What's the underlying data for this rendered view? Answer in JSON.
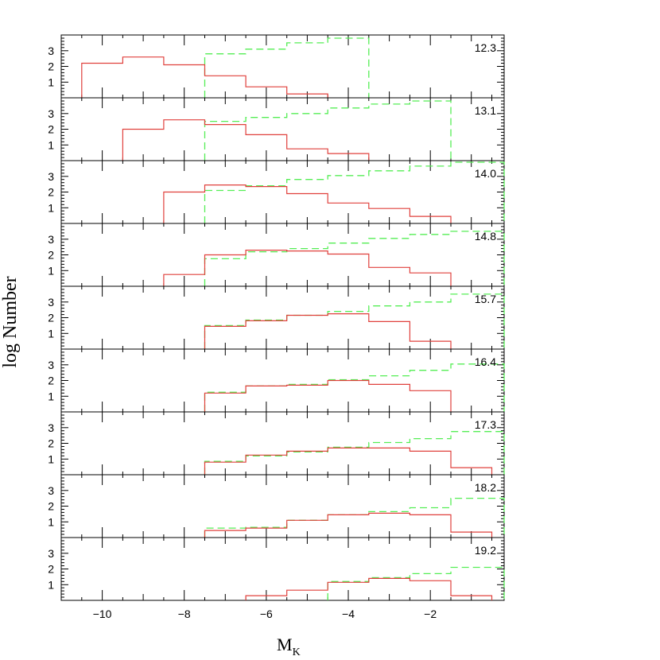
{
  "chart_data": {
    "type": "step",
    "xlabel_main": "M",
    "xlabel_sub": "K",
    "ylabel": "log Number",
    "xlim": [
      -11.0,
      -0.2
    ],
    "ylim": [
      0,
      4
    ],
    "xticks": [
      -10,
      -8,
      -6,
      -4,
      -2
    ],
    "xtick_labels": [
      "−10",
      "−8",
      "−6",
      "−4",
      "−2"
    ],
    "yticks": [
      1,
      2,
      3
    ],
    "ytick_labels": [
      "1",
      "2",
      "3"
    ],
    "bin_edges": [
      -10.5,
      -9.5,
      -8.5,
      -7.5,
      -6.5,
      -5.5,
      -4.5,
      -3.5,
      -2.5,
      -1.5,
      -0.5
    ],
    "model_bin_edges": [
      -7.5,
      -6.5,
      -5.5,
      -4.5,
      -3.5,
      -2.5,
      -1.5,
      -0.2
    ],
    "series_styles": {
      "observed": {
        "color": "#e0403c",
        "dash": "none"
      },
      "model": {
        "color": "#55ee55",
        "dash": "9,5"
      }
    },
    "panels": [
      {
        "label": "12.3",
        "observed": [
          2.2,
          2.6,
          2.1,
          1.4,
          0.7,
          0.25,
          null,
          null,
          null,
          null
        ],
        "model": [
          2.8,
          3.1,
          3.5,
          3.8,
          null,
          null,
          null
        ]
      },
      {
        "label": "13.1",
        "observed": [
          null,
          2.0,
          2.6,
          2.3,
          1.65,
          0.75,
          0.45,
          null,
          null,
          null
        ],
        "model": [
          2.5,
          2.75,
          3.0,
          3.35,
          3.6,
          3.8,
          null
        ]
      },
      {
        "label": "14.0",
        "observed": [
          null,
          null,
          2.0,
          2.45,
          2.35,
          1.9,
          1.3,
          0.95,
          0.45,
          null
        ],
        "model": [
          2.1,
          2.4,
          2.8,
          3.05,
          3.35,
          3.65,
          3.9
        ]
      },
      {
        "label": "14.8",
        "observed": [
          null,
          null,
          0.75,
          2.0,
          2.3,
          2.25,
          2.05,
          1.2,
          0.85,
          null
        ],
        "model": [
          1.75,
          2.2,
          2.4,
          2.75,
          3.05,
          3.3,
          3.5
        ]
      },
      {
        "label": "15.7",
        "observed": [
          null,
          null,
          null,
          1.45,
          1.8,
          2.15,
          2.25,
          1.75,
          0.5,
          null
        ],
        "model": [
          1.5,
          1.85,
          2.15,
          2.4,
          2.75,
          3.0,
          3.5
        ]
      },
      {
        "label": "16.4",
        "observed": [
          null,
          null,
          null,
          1.2,
          1.65,
          1.7,
          2.0,
          1.75,
          1.35,
          null
        ],
        "model": [
          1.25,
          1.65,
          1.75,
          2.05,
          2.3,
          2.65,
          3.05
        ]
      },
      {
        "label": "17.3",
        "observed": [
          null,
          null,
          null,
          0.8,
          1.25,
          1.5,
          1.7,
          1.7,
          1.5,
          0.45
        ],
        "model": [
          0.85,
          1.2,
          1.45,
          1.75,
          2.05,
          2.3,
          2.75
        ]
      },
      {
        "label": "18.2",
        "observed": [
          null,
          null,
          null,
          0.45,
          0.6,
          1.1,
          1.45,
          1.55,
          1.45,
          0.35
        ],
        "model": [
          0.6,
          0.65,
          1.1,
          1.45,
          1.65,
          1.9,
          2.5
        ]
      },
      {
        "label": "19.2",
        "observed": [
          null,
          null,
          null,
          null,
          0.3,
          0.65,
          1.15,
          1.4,
          1.25,
          0.3
        ],
        "model": [
          null,
          null,
          null,
          1.2,
          1.45,
          1.7,
          2.1
        ]
      }
    ]
  }
}
